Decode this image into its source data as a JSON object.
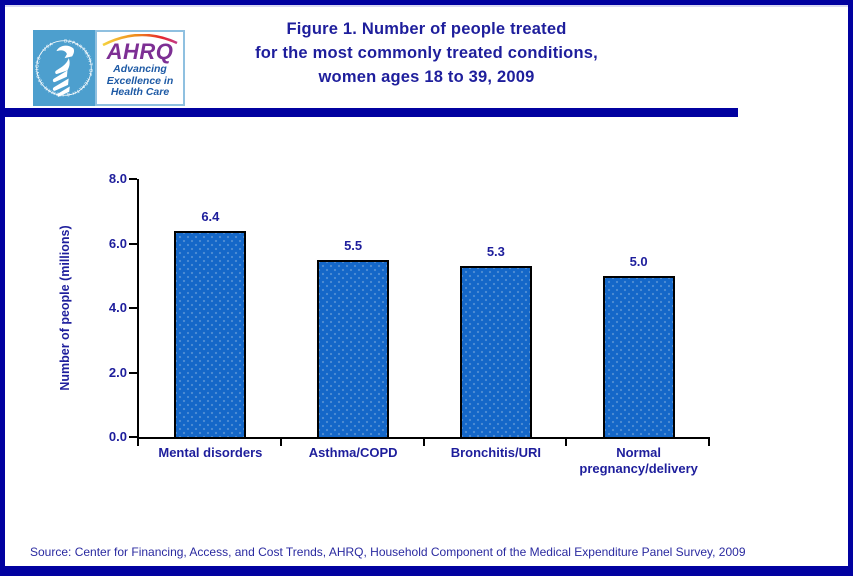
{
  "header": {
    "title_lines": [
      "Figure 1. Number of people treated",
      "for the most commonly treated conditions,",
      "women ages 18 to 39, 2009"
    ],
    "logo": {
      "seal_text": "DEPARTMENT OF HEALTH & HUMAN SERVICES · USA",
      "acronym": "AHRQ",
      "tagline_lines": [
        "Advancing",
        "Excellence in",
        "Health Care"
      ]
    }
  },
  "chart_data": {
    "type": "bar",
    "title": "Figure 1. Number of people treated for the most commonly treated conditions, women ages 18 to 39, 2009",
    "categories": [
      "Mental disorders",
      "Asthma/COPD",
      "Bronchitis/URI",
      "Normal pregnancy/delivery"
    ],
    "values": [
      6.4,
      5.5,
      5.3,
      5.0
    ],
    "data_labels": [
      "6.4",
      "5.5",
      "5.3",
      "5.0"
    ],
    "xlabel": "",
    "ylabel": "Number of people (millions)",
    "ylim": [
      0,
      8
    ],
    "ytick_labels_top_to_bottom": [
      "8.0",
      "6.0",
      "4.0",
      "2.0",
      "0.0"
    ],
    "grid": false,
    "legend": false,
    "bar_color": "#1467c8",
    "bar_border_color": "#000000"
  },
  "footer": {
    "source": "Source: Center for Financing, Access, and Cost Trends, AHRQ, Household Component of the Medical Expenditure Panel Survey, 2009"
  },
  "colors": {
    "border_navy": "#0101a0",
    "text_navy": "#1e1e9c",
    "hhs_panel_blue": "#4d9fce",
    "ahrq_purple": "#7d2f94",
    "tagline_blue": "#1e5aa5",
    "axis_black": "#000000"
  }
}
